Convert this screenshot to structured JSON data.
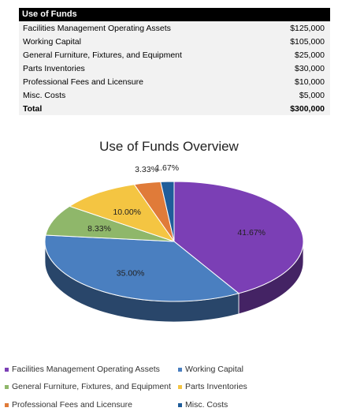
{
  "table": {
    "header": "Use of Funds",
    "rows": [
      {
        "label": "Facilities Management Operating Assets",
        "amount": "$125,000"
      },
      {
        "label": "Working Capital",
        "amount": "$105,000"
      },
      {
        "label": "General Furniture, Fixtures, and Equipment",
        "amount": "$25,000"
      },
      {
        "label": "Parts Inventories",
        "amount": "$30,000"
      },
      {
        "label": "Professional Fees and Licensure",
        "amount": "$10,000"
      },
      {
        "label": "Misc. Costs",
        "amount": "$5,000"
      }
    ],
    "total": {
      "label": "Total",
      "amount": "$300,000"
    }
  },
  "chart_data": {
    "type": "pie",
    "title": "Use of Funds Overview",
    "three_d": true,
    "categories": [
      "Facilities Management Operating Assets",
      "Working Capital",
      "General Furniture, Fixtures, and Equipment",
      "Parts Inventories",
      "Professional Fees and Licensure",
      "Misc. Costs"
    ],
    "values": [
      41.67,
      35.0,
      8.33,
      10.0,
      3.33,
      1.67
    ],
    "data_labels": [
      "41.67%",
      "35.00%",
      "8.33%",
      "10.00%",
      "3.33%",
      "1.67%"
    ],
    "colors": [
      "#7b3fb5",
      "#4a7fc0",
      "#8fb76a",
      "#f4c542",
      "#e07b39",
      "#1f5d9a"
    ],
    "legend_placement": "bottom"
  }
}
